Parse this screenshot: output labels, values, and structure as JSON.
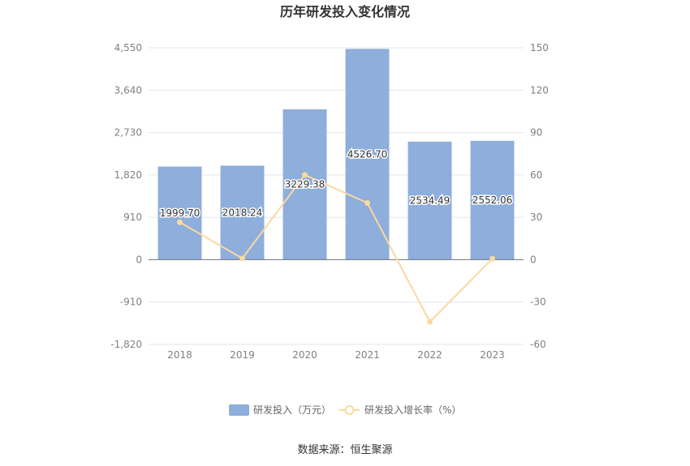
{
  "chart_data": {
    "type": "bar",
    "title": "历年研发投入变化情况",
    "categories": [
      "2018",
      "2019",
      "2020",
      "2021",
      "2022",
      "2023"
    ],
    "series": [
      {
        "name": "研发投入（万元）",
        "type": "bar",
        "axis": "left",
        "color": "#8eaedb",
        "values": [
          1999.7,
          2018.24,
          3229.38,
          4526.7,
          2534.49,
          2552.06
        ],
        "labels": [
          "1999.70",
          "2018.24",
          "3229.38",
          "4526.70",
          "2534.49",
          "2552.06"
        ]
      },
      {
        "name": "研发投入增长率（%）",
        "type": "line",
        "axis": "right",
        "color": "#f9d9a0",
        "values": [
          26.5,
          0.9,
          60.0,
          40.2,
          -44.0,
          0.7
        ]
      }
    ],
    "y_left": {
      "min": -1820,
      "max": 4550,
      "ticks": [
        -1820,
        -910,
        0,
        910,
        1820,
        2730,
        3640,
        4550
      ],
      "tick_labels": [
        "-1,820",
        "-910",
        "0",
        "910",
        "1,820",
        "2,730",
        "3,640",
        "4,550"
      ]
    },
    "y_right": {
      "min": -60,
      "max": 150,
      "ticks": [
        -60,
        -30,
        0,
        30,
        60,
        90,
        120,
        150
      ],
      "tick_labels": [
        "-60",
        "-30",
        "0",
        "30",
        "60",
        "90",
        "120",
        "150"
      ]
    },
    "grid": true,
    "legend_position": "bottom",
    "source": "数据来源：恒生聚源"
  }
}
